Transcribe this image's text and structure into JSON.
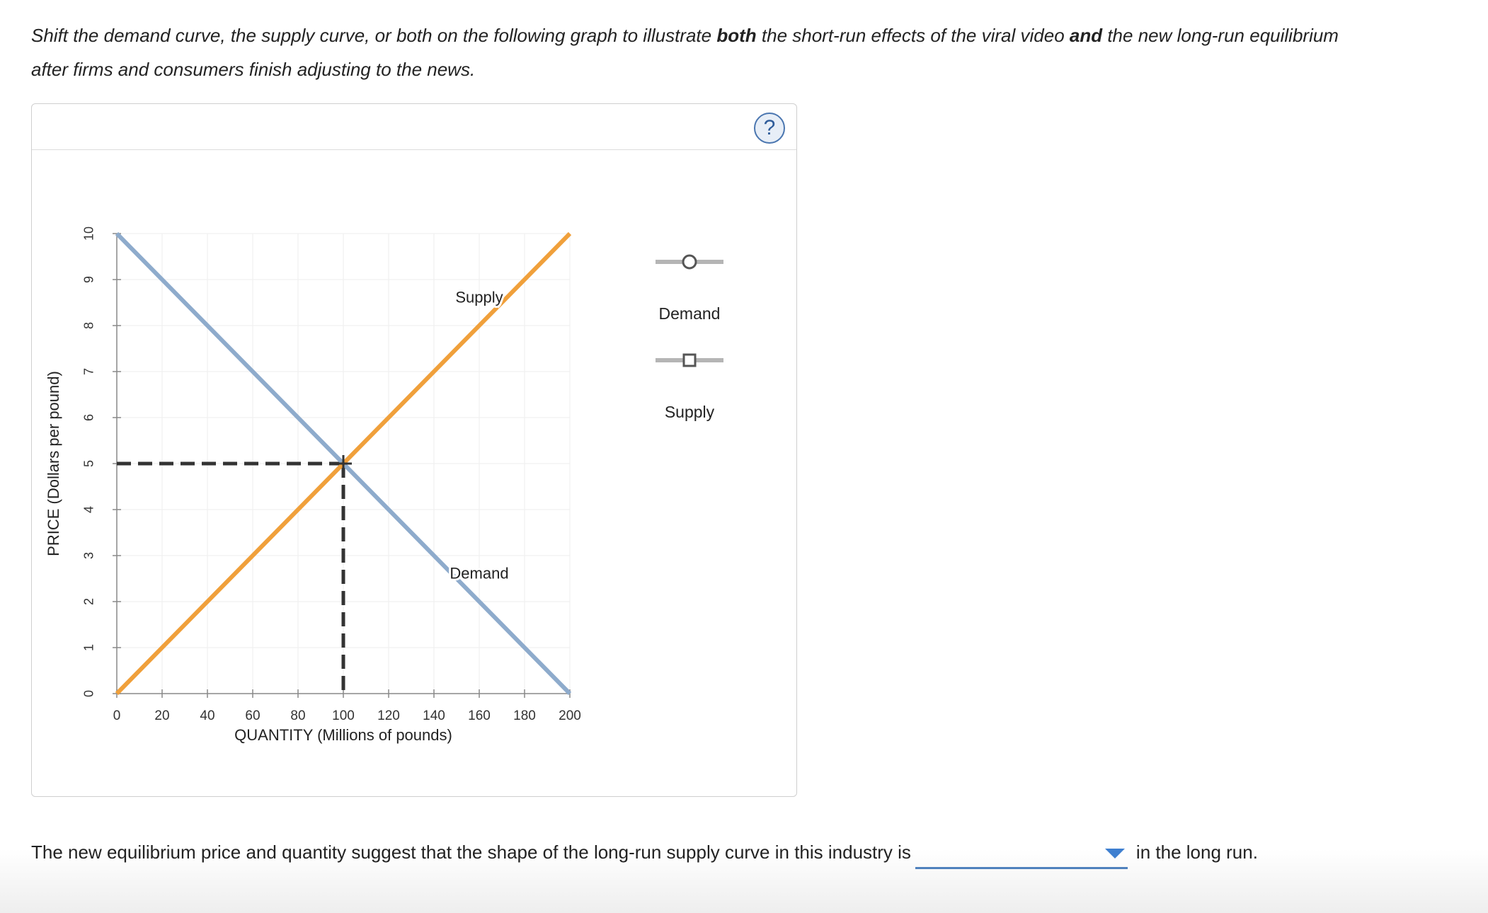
{
  "instructions": {
    "part1": "Shift the demand curve, the supply curve, or both on the following graph to illustrate ",
    "bold1": "both",
    "part2": " the short-run effects of the viral video ",
    "bold2": "and",
    "part3": " the new long-run equilibrium after firms and consumers finish adjusting to the news."
  },
  "help_label": "?",
  "legend": {
    "demand_label": "Demand",
    "supply_label": "Supply",
    "colors": {
      "handle_line": "#b5b5b5",
      "marker_stroke": "#555555"
    },
    "demand_marker_icon": "circle-icon",
    "supply_marker_icon": "square-icon"
  },
  "chart_data": {
    "type": "line",
    "xlabel": "QUANTITY (Millions of pounds)",
    "ylabel": "PRICE (Dollars per pound)",
    "xlim": [
      0,
      200
    ],
    "ylim": [
      0,
      10
    ],
    "x_ticks": [
      0,
      20,
      40,
      60,
      80,
      100,
      120,
      140,
      160,
      180,
      200
    ],
    "y_ticks": [
      0,
      1,
      2,
      3,
      4,
      5,
      6,
      7,
      8,
      9,
      10
    ],
    "grid": true,
    "series": [
      {
        "name": "Demand",
        "x": [
          0,
          200
        ],
        "y": [
          10,
          0
        ],
        "color": "#8eabcc",
        "label": "Demand",
        "label_at": [
          160,
          2.5
        ]
      },
      {
        "name": "Supply",
        "x": [
          0,
          200
        ],
        "y": [
          0,
          10
        ],
        "color": "#f0a03b",
        "label": "Supply",
        "label_at": [
          160,
          8.5
        ]
      }
    ],
    "equilibrium": {
      "x": 100,
      "y": 5,
      "color": "#333333"
    }
  },
  "question": {
    "before": "The new equilibrium price and quantity suggest that the shape of the long-run supply curve in this industry is",
    "selected": "",
    "after": "in the long run."
  }
}
